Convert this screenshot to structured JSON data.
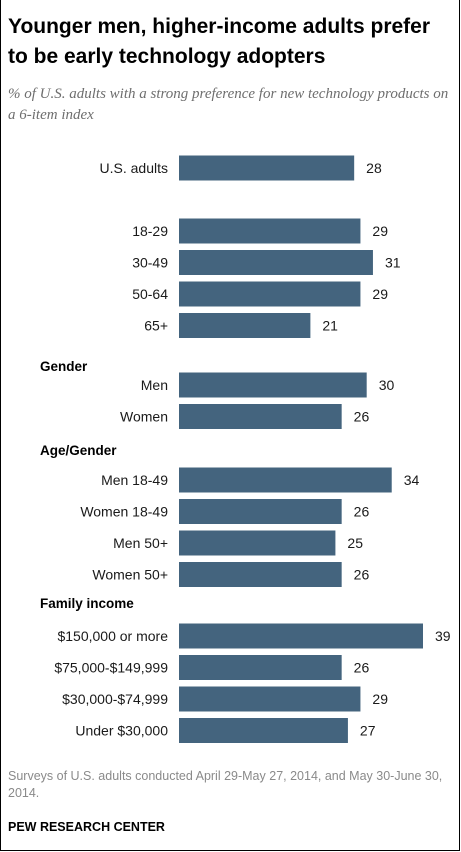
{
  "title": "Younger men, higher-income adults prefer to be early technology adopters",
  "subtitle": "% of U.S. adults with a strong preference for new technology products on a 6-item index",
  "footnote": "Surveys of U.S. adults conducted April 29-May 27, 2014, and May 30-June 30, 2014.",
  "source": "PEW RESEARCH CENTER",
  "colors": {
    "bar": "#44647e",
    "label": "#1a1a1a"
  },
  "chart_data": {
    "type": "bar",
    "orientation": "horizontal",
    "groups": [
      {
        "heading": "",
        "items": [
          {
            "label": "U.S. adults",
            "value": 28
          }
        ]
      },
      {
        "heading": "",
        "items": [
          {
            "label": "18-29",
            "value": 29
          },
          {
            "label": "30-49",
            "value": 31
          },
          {
            "label": "50-64",
            "value": 29
          },
          {
            "label": "65+",
            "value": 21
          }
        ]
      },
      {
        "heading": "Gender",
        "items": [
          {
            "label": "Men",
            "value": 30
          },
          {
            "label": "Women",
            "value": 26
          }
        ]
      },
      {
        "heading": "Age/Gender",
        "items": [
          {
            "label": "Men 18-49",
            "value": 34
          },
          {
            "label": "Women 18-49",
            "value": 26
          },
          {
            "label": "Men 50+",
            "value": 25
          },
          {
            "label": "Women 50+",
            "value": 26
          }
        ]
      },
      {
        "heading": "Family income",
        "items": [
          {
            "label": "$150,000 or more",
            "value": 39
          },
          {
            "label": "$75,000-$149,999",
            "value": 26
          },
          {
            "label": "$30,000-$74,999",
            "value": 29
          },
          {
            "label": "Under $30,000",
            "value": 27
          }
        ]
      }
    ],
    "xlim": [
      0,
      39
    ],
    "grid": false,
    "legend": "none"
  }
}
